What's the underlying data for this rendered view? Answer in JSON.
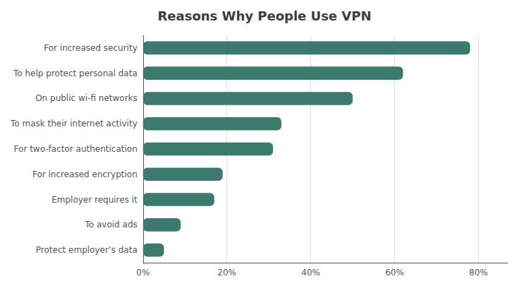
{
  "chart_data": {
    "type": "bar",
    "orientation": "horizontal",
    "title": "Reasons Why People Use VPN",
    "categories": [
      "Protect employer’s data",
      "To avoid ads",
      "Employer requires it",
      "For increased encryption",
      "For two-factor authentication",
      "To mask their internet activity",
      "On public wi-fi networks",
      "To help protect personal data",
      "For increased security"
    ],
    "values": [
      5,
      9,
      17,
      19,
      31,
      33,
      50,
      62,
      78
    ],
    "color": "#3d7a6e",
    "xlim": [
      0,
      87
    ],
    "xticks": [
      {
        "value": 0,
        "label": "0%"
      },
      {
        "value": 20,
        "label": "20%"
      },
      {
        "value": 40,
        "label": "40%"
      },
      {
        "value": 60,
        "label": "60%"
      },
      {
        "value": 80,
        "label": "80%"
      }
    ],
    "grid": true
  }
}
